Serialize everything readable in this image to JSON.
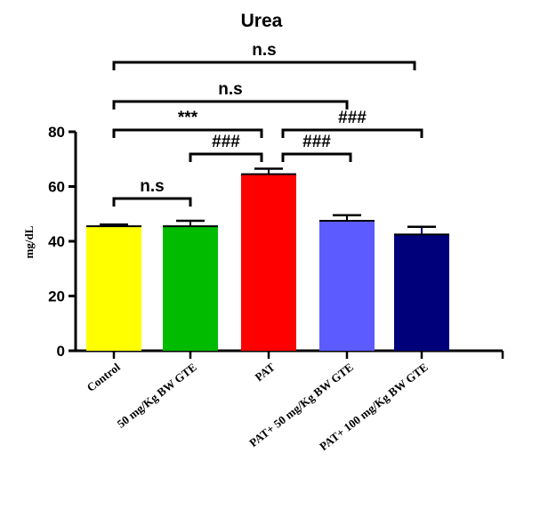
{
  "chart_data": {
    "type": "bar",
    "title": "Urea",
    "ylabel": "mg/dL",
    "xlabel": "",
    "ylim": [
      0,
      80
    ],
    "yticks": [
      0,
      20,
      40,
      60,
      80
    ],
    "categories": [
      "Control",
      "50 mg/Kg BW GTE",
      "PAT",
      "PAT+ 50 mg/Kg BW GTE",
      "PAT+ 100 mg/Kg BW GTE"
    ],
    "values": [
      45.5,
      45.5,
      64.5,
      47.5,
      42.5
    ],
    "errors": [
      0.6,
      2.0,
      2.0,
      2.0,
      2.8
    ],
    "colors": [
      "#ffff00",
      "#00bb00",
      "#ff0000",
      "#5b5bff",
      "#00007a"
    ],
    "significance": [
      {
        "from": 0,
        "to": 1,
        "label": "n.s"
      },
      {
        "from": 1,
        "to": 2,
        "label": "###"
      },
      {
        "from": 2,
        "to": 3,
        "label": "###"
      },
      {
        "from": 0,
        "to": 2,
        "label": "***"
      },
      {
        "from": 2,
        "to": 4,
        "label": "###"
      },
      {
        "from": 0,
        "to": 3,
        "label": "n.s"
      },
      {
        "from": 0,
        "to": 4,
        "label": "n.s"
      }
    ]
  }
}
